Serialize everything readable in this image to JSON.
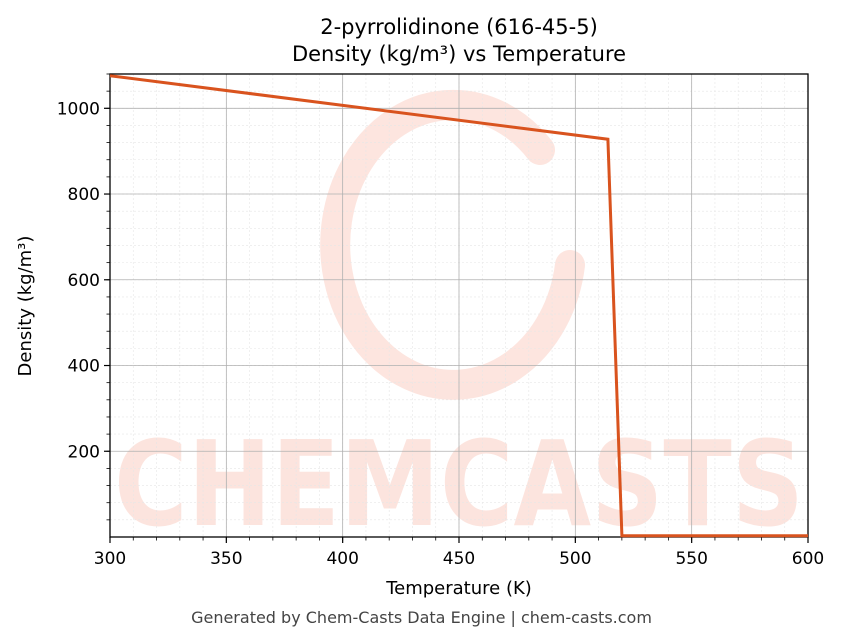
{
  "chart_data": {
    "type": "line",
    "title": "2-pyrrolidinone (616-45-5)",
    "subtitle": "Density (kg/m³) vs Temperature",
    "xlabel": "Temperature (K)",
    "ylabel": "Density (kg/m³)",
    "xlim": [
      300,
      600
    ],
    "ylim": [
      0,
      1080
    ],
    "xticks": [
      300,
      350,
      400,
      450,
      500,
      550,
      600
    ],
    "yticks": [
      200,
      400,
      600,
      800,
      1000
    ],
    "grid": true,
    "line_color": "#d9531e",
    "series": [
      {
        "x": [
          300,
          514,
          520,
          600
        ],
        "values": [
          1076,
          928,
          3,
          3
        ]
      }
    ]
  },
  "watermark": "CHEMCASTS",
  "footer": "Generated by Chem-Casts Data Engine | chem-casts.com"
}
